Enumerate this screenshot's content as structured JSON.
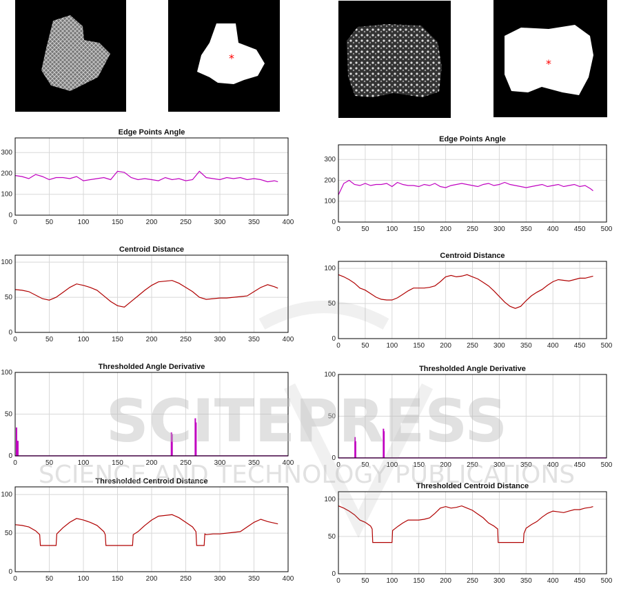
{
  "figure": {
    "images": [
      {
        "kind": "texture",
        "caption": ""
      },
      {
        "kind": "mask",
        "caption": ""
      },
      {
        "kind": "texture",
        "caption": ""
      },
      {
        "kind": "mask",
        "caption": ""
      }
    ],
    "watermark": {
      "line1": "SCITEPRESS",
      "line2": "SCIENCE AND TECHNOLOGY PUBLICATIONS"
    },
    "colors": {
      "angle": "#c000c0",
      "centroid": "#b00000",
      "grid": "#d8d8d8",
      "axis": "#000000",
      "centroid_marker": "#ff0000"
    }
  },
  "chart_data": [
    {
      "id": "L1",
      "type": "line",
      "title": "Edge Points Angle",
      "color": "magenta",
      "xlim": [
        0,
        400
      ],
      "ylim": [
        0,
        370
      ],
      "xticks": [
        0,
        50,
        100,
        150,
        200,
        250,
        300,
        350,
        400
      ],
      "yticks": [
        0,
        100,
        200,
        300
      ],
      "series": [
        {
          "x": [
            0,
            10,
            20,
            30,
            40,
            50,
            60,
            70,
            80,
            90,
            100,
            110,
            120,
            130,
            140,
            150,
            160,
            170,
            180,
            190,
            200,
            210,
            220,
            230,
            240,
            250,
            260,
            270,
            280,
            290,
            300,
            310,
            320,
            330,
            340,
            350,
            360,
            370,
            380,
            385
          ],
          "values": [
            190,
            185,
            175,
            195,
            185,
            170,
            180,
            180,
            175,
            185,
            165,
            170,
            175,
            180,
            170,
            210,
            205,
            180,
            170,
            175,
            170,
            165,
            180,
            170,
            175,
            165,
            170,
            210,
            180,
            175,
            170,
            180,
            175,
            180,
            170,
            175,
            170,
            160,
            165,
            160
          ]
        }
      ]
    },
    {
      "id": "R1",
      "type": "line",
      "title": "Edge Points Angle",
      "color": "magenta",
      "xlim": [
        0,
        500
      ],
      "ylim": [
        0,
        370
      ],
      "xticks": [
        0,
        50,
        100,
        150,
        200,
        250,
        300,
        350,
        400,
        450,
        500
      ],
      "yticks": [
        0,
        100,
        200,
        300
      ],
      "series": [
        {
          "x": [
            0,
            10,
            20,
            30,
            40,
            50,
            60,
            70,
            80,
            90,
            100,
            110,
            120,
            130,
            140,
            150,
            160,
            170,
            180,
            190,
            200,
            210,
            220,
            230,
            240,
            250,
            260,
            270,
            280,
            290,
            300,
            310,
            320,
            330,
            340,
            350,
            360,
            370,
            380,
            390,
            400,
            410,
            420,
            430,
            440,
            450,
            460,
            470,
            475
          ],
          "values": [
            130,
            185,
            200,
            180,
            175,
            185,
            175,
            180,
            180,
            185,
            170,
            190,
            180,
            175,
            175,
            170,
            180,
            175,
            185,
            170,
            165,
            175,
            180,
            185,
            180,
            175,
            170,
            180,
            185,
            175,
            180,
            190,
            180,
            175,
            170,
            165,
            170,
            175,
            180,
            170,
            175,
            180,
            170,
            175,
            180,
            170,
            175,
            160,
            150
          ]
        }
      ]
    },
    {
      "id": "L2",
      "type": "line",
      "title": "Centroid Distance",
      "color": "red",
      "xlim": [
        0,
        400
      ],
      "ylim": [
        0,
        110
      ],
      "xticks": [
        0,
        50,
        100,
        150,
        200,
        250,
        300,
        350,
        400
      ],
      "yticks": [
        0,
        50,
        100
      ],
      "series": [
        {
          "x": [
            0,
            10,
            20,
            30,
            40,
            50,
            60,
            70,
            80,
            90,
            100,
            110,
            120,
            130,
            140,
            150,
            160,
            170,
            180,
            190,
            200,
            210,
            220,
            230,
            240,
            250,
            260,
            270,
            280,
            290,
            300,
            310,
            320,
            330,
            340,
            350,
            360,
            370,
            380,
            385
          ],
          "values": [
            61,
            60,
            58,
            53,
            48,
            46,
            50,
            57,
            64,
            69,
            67,
            64,
            60,
            52,
            44,
            38,
            36,
            44,
            52,
            60,
            67,
            72,
            73,
            74,
            70,
            64,
            58,
            50,
            47,
            48,
            49,
            49,
            50,
            51,
            52,
            58,
            64,
            68,
            65,
            63
          ]
        }
      ]
    },
    {
      "id": "R2",
      "type": "line",
      "title": "Centroid Distance",
      "color": "red",
      "xlim": [
        0,
        500
      ],
      "ylim": [
        0,
        110
      ],
      "xticks": [
        0,
        50,
        100,
        150,
        200,
        250,
        300,
        350,
        400,
        450,
        500
      ],
      "yticks": [
        0,
        50,
        100
      ],
      "series": [
        {
          "x": [
            0,
            10,
            20,
            30,
            40,
            50,
            60,
            70,
            80,
            90,
            100,
            110,
            120,
            130,
            140,
            150,
            160,
            170,
            180,
            190,
            200,
            210,
            220,
            230,
            240,
            250,
            260,
            270,
            280,
            290,
            300,
            310,
            320,
            330,
            340,
            350,
            360,
            370,
            380,
            390,
            400,
            410,
            420,
            430,
            440,
            450,
            460,
            470,
            475
          ],
          "values": [
            91,
            88,
            84,
            79,
            72,
            69,
            64,
            59,
            56,
            55,
            55,
            58,
            63,
            68,
            72,
            72,
            72,
            73,
            75,
            81,
            88,
            90,
            88,
            89,
            91,
            88,
            85,
            80,
            75,
            68,
            60,
            52,
            46,
            43,
            46,
            54,
            61,
            66,
            70,
            76,
            81,
            84,
            83,
            82,
            84,
            86,
            86,
            88,
            89
          ]
        }
      ]
    },
    {
      "id": "L3",
      "type": "bar-spikes",
      "title": "Thresholded Angle Derivative",
      "color": "magenta",
      "xlim": [
        0,
        400
      ],
      "ylim": [
        0,
        100
      ],
      "xticks": [
        0,
        50,
        100,
        150,
        200,
        250,
        300,
        350,
        400
      ],
      "yticks": [
        0,
        50,
        100
      ],
      "x": [
        2,
        4,
        229,
        230,
        264,
        265
      ],
      "values": [
        34,
        18,
        28,
        26,
        45,
        40
      ]
    },
    {
      "id": "R3",
      "type": "bar-spikes",
      "title": "Thresholded Angle Derivative",
      "color": "magenta",
      "xlim": [
        0,
        500
      ],
      "ylim": [
        0,
        100
      ],
      "xticks": [
        0,
        50,
        100,
        150,
        200,
        250,
        300,
        350,
        400,
        450,
        500
      ],
      "yticks": [
        0,
        50,
        100
      ],
      "x": [
        31,
        32,
        84,
        85
      ],
      "values": [
        25,
        20,
        35,
        32
      ]
    },
    {
      "id": "L4",
      "type": "line",
      "title": "Thresholded Centroid Distance",
      "color": "red",
      "xlim": [
        0,
        400
      ],
      "ylim": [
        0,
        110
      ],
      "xticks": [
        0,
        50,
        100,
        150,
        200,
        250,
        300,
        350,
        400
      ],
      "yticks": [
        0,
        50,
        100
      ],
      "series": [
        {
          "x": [
            0,
            10,
            20,
            30,
            36,
            37,
            60,
            61,
            70,
            80,
            90,
            100,
            110,
            120,
            130,
            132,
            133,
            172,
            173,
            180,
            190,
            200,
            210,
            220,
            230,
            240,
            250,
            260,
            265,
            266,
            277,
            278,
            280,
            290,
            300,
            310,
            320,
            330,
            340,
            350,
            360,
            370,
            380,
            385
          ],
          "values": [
            61,
            60,
            58,
            53,
            48,
            34,
            34,
            49,
            57,
            64,
            69,
            67,
            64,
            60,
            52,
            48,
            34,
            34,
            48,
            52,
            60,
            67,
            72,
            73,
            74,
            70,
            64,
            58,
            52,
            34,
            34,
            49,
            48,
            49,
            49,
            50,
            51,
            52,
            58,
            64,
            68,
            65,
            63,
            62
          ]
        }
      ]
    },
    {
      "id": "R4",
      "type": "line",
      "title": "Thresholded Centroid Distance",
      "color": "red",
      "xlim": [
        0,
        500
      ],
      "ylim": [
        0,
        110
      ],
      "xticks": [
        0,
        50,
        100,
        150,
        200,
        250,
        300,
        350,
        400,
        450,
        500
      ],
      "yticks": [
        0,
        50,
        100
      ],
      "series": [
        {
          "x": [
            0,
            10,
            20,
            30,
            40,
            50,
            60,
            63,
            64,
            100,
            101,
            110,
            120,
            130,
            140,
            150,
            160,
            170,
            180,
            190,
            200,
            210,
            220,
            230,
            240,
            250,
            260,
            270,
            280,
            290,
            297,
            298,
            345,
            346,
            350,
            360,
            370,
            380,
            390,
            400,
            410,
            420,
            430,
            440,
            450,
            460,
            470,
            475
          ],
          "values": [
            91,
            88,
            84,
            79,
            72,
            69,
            64,
            60,
            42,
            42,
            58,
            63,
            68,
            72,
            72,
            72,
            73,
            75,
            81,
            88,
            90,
            88,
            89,
            91,
            88,
            85,
            80,
            75,
            68,
            64,
            60,
            42,
            42,
            54,
            61,
            66,
            70,
            76,
            81,
            84,
            83,
            82,
            84,
            86,
            86,
            88,
            89,
            90
          ]
        }
      ]
    }
  ]
}
